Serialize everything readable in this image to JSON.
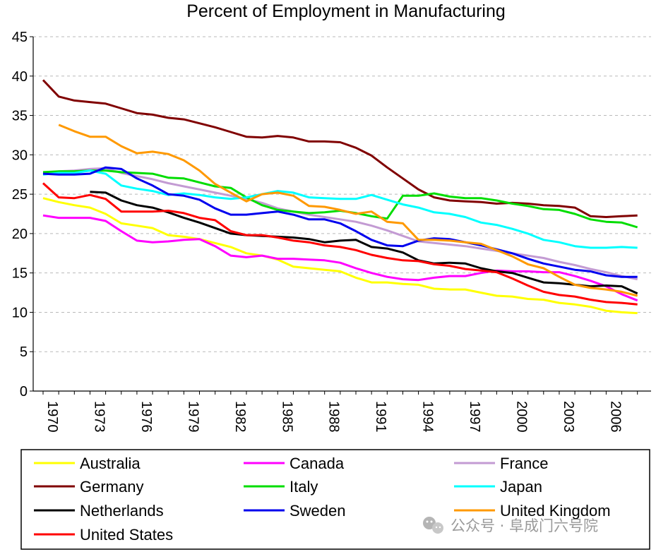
{
  "chart_data": {
    "type": "line",
    "title": "Percent of Employment in Manufacturing",
    "xlabel": "",
    "ylabel": "",
    "xlim": [
      1970,
      2008
    ],
    "ylim": [
      0,
      45
    ],
    "yticks": [
      0,
      5,
      10,
      15,
      20,
      25,
      30,
      35,
      40,
      45
    ],
    "xticks": [
      1970,
      1973,
      1976,
      1979,
      1982,
      1985,
      1988,
      1991,
      1994,
      1997,
      2000,
      2003,
      2006
    ],
    "grid": true,
    "legend_position": "bottom",
    "series": [
      {
        "name": "Australia",
        "color": "#ffff00",
        "x": [
          1970,
          1971,
          1972,
          1973,
          1974,
          1975,
          1976,
          1977,
          1978,
          1979,
          1980,
          1981,
          1982,
          1983,
          1984,
          1985,
          1986,
          1987,
          1988,
          1989,
          1990,
          1991,
          1992,
          1993,
          1994,
          1995,
          1996,
          1997,
          1998,
          1999,
          2000,
          2001,
          2002,
          2003,
          2004,
          2005,
          2006,
          2007,
          2008
        ],
        "values": [
          24.5,
          24,
          23.6,
          23.3,
          22.5,
          21.3,
          21,
          20.7,
          19.8,
          19.6,
          19.3,
          18.8,
          18.3,
          17.5,
          17.2,
          16.7,
          15.8,
          15.6,
          15.4,
          15.2,
          14.4,
          13.8,
          13.8,
          13.6,
          13.5,
          13,
          12.9,
          12.9,
          12.5,
          12.1,
          12,
          11.7,
          11.6,
          11.2,
          11,
          10.7,
          10.2,
          10,
          9.9
        ]
      },
      {
        "name": "Canada",
        "color": "#ff00ff",
        "x": [
          1970,
          1971,
          1972,
          1973,
          1974,
          1975,
          1976,
          1977,
          1978,
          1979,
          1980,
          1981,
          1982,
          1983,
          1984,
          1985,
          1986,
          1987,
          1988,
          1989,
          1990,
          1991,
          1992,
          1993,
          1994,
          1995,
          1996,
          1997,
          1998,
          1999,
          2000,
          2001,
          2002,
          2003,
          2004,
          2005,
          2006,
          2007,
          2008
        ],
        "values": [
          22.3,
          22,
          22,
          22,
          21.6,
          20.3,
          19.1,
          18.9,
          19,
          19.2,
          19.3,
          18.4,
          17.2,
          17,
          17.2,
          16.8,
          16.8,
          16.7,
          16.6,
          16.3,
          15.6,
          15,
          14.5,
          14.2,
          14.1,
          14.4,
          14.6,
          14.6,
          15,
          15.3,
          15.2,
          15.2,
          15.1,
          15.1,
          14.6,
          14,
          13.3,
          12.3,
          11.5
        ]
      },
      {
        "name": "France",
        "color": "#c39bd3",
        "x": [
          1970,
          1971,
          1972,
          1973,
          1974,
          1975,
          1976,
          1977,
          1978,
          1979,
          1980,
          1981,
          1982,
          1983,
          1984,
          1985,
          1986,
          1987,
          1988,
          1989,
          1990,
          1991,
          1992,
          1993,
          1994,
          1995,
          1996,
          1997,
          1998,
          1999,
          2000,
          2001,
          2002,
          2003,
          2004,
          2005,
          2006,
          2007,
          2008
        ],
        "values": [
          27.6,
          27.9,
          28,
          28.2,
          28.3,
          27.7,
          27.3,
          26.9,
          26.4,
          26,
          25.6,
          25.2,
          24.8,
          24.4,
          23.9,
          23.2,
          22.8,
          22.4,
          22.1,
          21.8,
          21.5,
          21,
          20.4,
          19.7,
          19,
          18.8,
          18.6,
          18.4,
          18.1,
          17.8,
          17.5,
          17.2,
          16.9,
          16.4,
          16,
          15.5,
          15.1,
          14.6,
          14.2
        ]
      },
      {
        "name": "Germany",
        "color": "#800000",
        "x": [
          1970,
          1971,
          1972,
          1973,
          1974,
          1975,
          1976,
          1977,
          1978,
          1979,
          1980,
          1981,
          1982,
          1983,
          1984,
          1985,
          1986,
          1987,
          1988,
          1989,
          1990,
          1991,
          1992,
          1993,
          1994,
          1995,
          1996,
          1997,
          1998,
          1999,
          2000,
          2001,
          2002,
          2003,
          2004,
          2005,
          2006,
          2007,
          2008
        ],
        "values": [
          39.5,
          37.4,
          36.9,
          36.7,
          36.5,
          35.9,
          35.3,
          35.1,
          34.7,
          34.5,
          34,
          33.5,
          32.9,
          32.3,
          32.2,
          32.4,
          32.2,
          31.7,
          31.7,
          31.6,
          30.9,
          29.9,
          28.4,
          27,
          25.6,
          24.6,
          24.2,
          24.1,
          24,
          23.8,
          23.9,
          23.8,
          23.6,
          23.5,
          23.3,
          22.2,
          22.1,
          22.2,
          22.3
        ]
      },
      {
        "name": "Italy",
        "color": "#00dd00",
        "x": [
          1970,
          1971,
          1972,
          1973,
          1974,
          1975,
          1976,
          1977,
          1978,
          1979,
          1980,
          1981,
          1982,
          1983,
          1984,
          1985,
          1986,
          1987,
          1988,
          1989,
          1990,
          1991,
          1992,
          1993,
          1994,
          1995,
          1996,
          1997,
          1998,
          1999,
          2000,
          2001,
          2002,
          2003,
          2004,
          2005,
          2006,
          2007,
          2008
        ],
        "values": [
          27.8,
          27.9,
          27.9,
          28,
          28,
          27.8,
          27.7,
          27.6,
          27.1,
          27,
          26.5,
          26,
          25.8,
          24.6,
          23.6,
          23,
          22.8,
          22.6,
          22.7,
          22.9,
          22.6,
          22.2,
          21.9,
          24.8,
          24.8,
          25.1,
          24.7,
          24.5,
          24.5,
          24.2,
          23.8,
          23.5,
          23.1,
          23,
          22.5,
          21.8,
          21.5,
          21.4,
          20.8
        ]
      },
      {
        "name": "Japan",
        "color": "#00ffff",
        "x": [
          1970,
          1971,
          1972,
          1973,
          1974,
          1975,
          1976,
          1977,
          1978,
          1979,
          1980,
          1981,
          1982,
          1983,
          1984,
          1985,
          1986,
          1987,
          1988,
          1989,
          1990,
          1991,
          1992,
          1993,
          1994,
          1995,
          1996,
          1997,
          1998,
          1999,
          2000,
          2001,
          2002,
          2003,
          2004,
          2005,
          2006,
          2007,
          2008
        ],
        "values": [
          27.5,
          27.7,
          27.7,
          28,
          27.6,
          26.1,
          25.7,
          25.4,
          24.9,
          25.1,
          24.9,
          24.6,
          24.4,
          24.6,
          25,
          25.4,
          25.2,
          24.6,
          24.5,
          24.4,
          24.4,
          24.9,
          24.3,
          23.7,
          23.3,
          22.7,
          22.5,
          22.1,
          21.4,
          21.1,
          20.6,
          20,
          19.2,
          18.9,
          18.4,
          18.2,
          18.2,
          18.3,
          18.2
        ]
      },
      {
        "name": "Netherlands",
        "color": "#000000",
        "x": [
          1973,
          1974,
          1975,
          1976,
          1977,
          1978,
          1979,
          1980,
          1981,
          1982,
          1983,
          1984,
          1985,
          1986,
          1987,
          1988,
          1989,
          1990,
          1991,
          1992,
          1993,
          1994,
          1995,
          1996,
          1997,
          1998,
          1999,
          2000,
          2001,
          2002,
          2003,
          2004,
          2005,
          2006,
          2007,
          2008
        ],
        "values": [
          25.3,
          25.2,
          24.2,
          23.6,
          23.3,
          22.7,
          22,
          21.4,
          20.7,
          20,
          19.8,
          19.7,
          19.6,
          19.5,
          19.3,
          18.9,
          19.1,
          19.2,
          18.3,
          18.1,
          17.6,
          16.6,
          16.2,
          16.3,
          16.2,
          15.6,
          15.2,
          15,
          14.4,
          13.8,
          13.7,
          13.5,
          13.3,
          13.4,
          13.3,
          12.4
        ]
      },
      {
        "name": "Sweden",
        "color": "#0000ee",
        "x": [
          1970,
          1971,
          1972,
          1973,
          1974,
          1975,
          1976,
          1977,
          1978,
          1979,
          1980,
          1981,
          1982,
          1983,
          1984,
          1985,
          1986,
          1987,
          1988,
          1989,
          1990,
          1991,
          1992,
          1993,
          1994,
          1995,
          1996,
          1997,
          1998,
          1999,
          2000,
          2001,
          2002,
          2003,
          2004,
          2005,
          2006,
          2007,
          2008
        ],
        "values": [
          27.6,
          27.5,
          27.5,
          27.6,
          28.4,
          28.2,
          27,
          26.1,
          25,
          24.8,
          24.3,
          23.2,
          22.4,
          22.4,
          22.6,
          22.8,
          22.4,
          21.8,
          21.8,
          21.3,
          20.3,
          19.2,
          18.5,
          18.4,
          19.1,
          19.4,
          19.3,
          18.9,
          18.5,
          18,
          17.5,
          16.8,
          16.2,
          15.8,
          15.4,
          15.2,
          14.7,
          14.5,
          14.5
        ]
      },
      {
        "name": "United Kingdom",
        "color": "#ff9900",
        "x": [
          1971,
          1972,
          1973,
          1974,
          1975,
          1976,
          1977,
          1978,
          1979,
          1980,
          1981,
          1982,
          1983,
          1984,
          1985,
          1986,
          1987,
          1988,
          1989,
          1990,
          1991,
          1992,
          1993,
          1994,
          1995,
          1996,
          1997,
          1998,
          1999,
          2000,
          2001,
          2002,
          2003,
          2004,
          2005,
          2006,
          2007,
          2008
        ],
        "values": [
          33.8,
          33,
          32.3,
          32.3,
          31.1,
          30.2,
          30.4,
          30.1,
          29.3,
          28,
          26.3,
          25.2,
          24.1,
          25,
          25.2,
          24.8,
          23.5,
          23.4,
          23,
          22.5,
          22.8,
          21.5,
          21.3,
          19.2,
          19.2,
          19.1,
          18.9,
          18.7,
          17.9,
          17.1,
          16.1,
          15.6,
          14.5,
          13.5,
          13.1,
          12.9,
          12.6,
          12.1
        ]
      },
      {
        "name": "United States",
        "color": "#ff0000",
        "x": [
          1970,
          1971,
          1972,
          1973,
          1974,
          1975,
          1976,
          1977,
          1978,
          1979,
          1980,
          1981,
          1982,
          1983,
          1984,
          1985,
          1986,
          1987,
          1988,
          1989,
          1990,
          1991,
          1992,
          1993,
          1994,
          1995,
          1996,
          1997,
          1998,
          1999,
          2000,
          2001,
          2002,
          2003,
          2004,
          2005,
          2006,
          2007,
          2008
        ],
        "values": [
          26.4,
          24.6,
          24.5,
          24.9,
          24.4,
          22.8,
          22.8,
          22.8,
          22.9,
          22.6,
          22,
          21.7,
          20.3,
          19.8,
          19.8,
          19.5,
          19.1,
          18.9,
          18.5,
          18.3,
          17.9,
          17.3,
          16.9,
          16.6,
          16.5,
          16.1,
          15.9,
          15.5,
          15.3,
          15.1,
          14.3,
          13.4,
          12.6,
          12.2,
          12,
          11.6,
          11.3,
          11.2,
          11
        ]
      }
    ]
  },
  "watermark": {
    "icon": "wechat-icon",
    "text": "公众号 · 阜成门六号院"
  }
}
